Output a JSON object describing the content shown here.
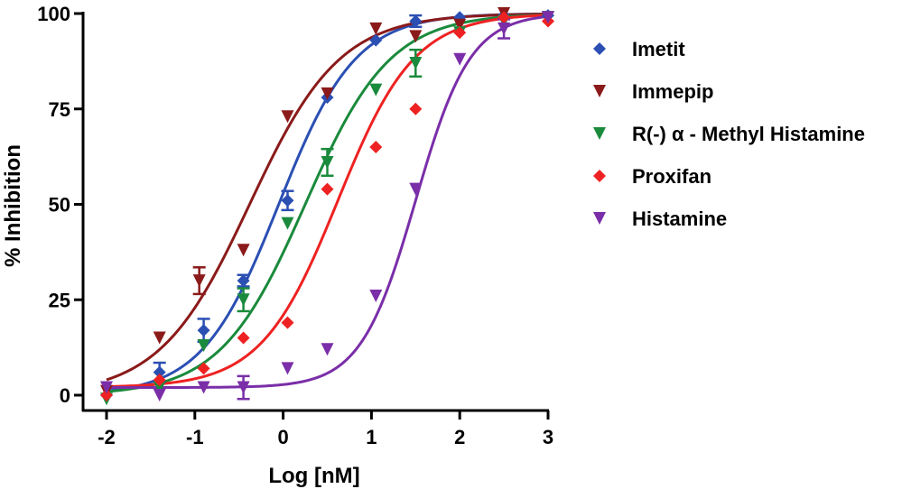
{
  "chart_data": {
    "type": "scatter",
    "title": "",
    "xlabel": "Log [nM]",
    "ylabel": "% Inhibition",
    "xlim": [
      -2,
      3
    ],
    "ylim": [
      0,
      100
    ],
    "xticks": [
      -2,
      -1,
      0,
      1,
      2,
      3
    ],
    "xtick_labels": [
      "-2",
      "-1",
      "0",
      "1",
      "2",
      "3"
    ],
    "yticks": [
      0,
      25,
      50,
      75,
      100
    ],
    "ytick_labels": [
      "0",
      "25",
      "50",
      "75",
      "100"
    ],
    "grid": false,
    "legend_position": "right",
    "series": [
      {
        "name": "Imetit",
        "color": "#2b4fb3",
        "marker": "diamond",
        "fit": {
          "bottom": 0,
          "top": 100,
          "logEC50": -0.05,
          "hill": 1.0
        },
        "x": [
          -2,
          -1.4,
          -0.9,
          -0.45,
          0.05,
          0.5,
          1.05,
          1.5,
          2,
          2.5,
          3
        ],
        "y": [
          0,
          6,
          17,
          30,
          51,
          78,
          93,
          98,
          99,
          99.5,
          99.5
        ],
        "err": [
          0,
          2.5,
          3,
          1.5,
          2.5,
          1,
          1,
          1.5,
          0.5,
          0.5,
          0.5
        ]
      },
      {
        "name": "Immepip",
        "color": "#8b1a1a",
        "marker": "triangle-down",
        "fit": {
          "bottom": 0,
          "top": 100,
          "logEC50": -0.38,
          "hill": 0.85
        },
        "x": [
          -2,
          -1.4,
          -0.95,
          -0.45,
          0.05,
          0.5,
          1.05,
          1.5,
          2,
          2.5,
          3
        ],
        "y": [
          1,
          15,
          30,
          38,
          73,
          79,
          96,
          94,
          97,
          100,
          99
        ],
        "err": [
          0,
          1,
          3.5,
          1,
          0.5,
          0.5,
          0.5,
          0.5,
          0.5,
          0.5,
          0.5
        ]
      },
      {
        "name": "R(-) α - Methyl Histamine",
        "color": "#1a8a3c",
        "marker": "triangle-down",
        "fit": {
          "bottom": 0,
          "top": 100,
          "logEC50": 0.25,
          "hill": 0.9
        },
        "x": [
          -2,
          -1.4,
          -0.9,
          -0.45,
          0.05,
          0.5,
          1.05,
          1.5,
          2,
          2.5,
          3
        ],
        "y": [
          -1,
          2,
          13,
          25,
          45,
          61,
          80,
          87,
          95,
          98,
          99
        ],
        "err": [
          0,
          0.5,
          1,
          3,
          0.5,
          3.5,
          0.5,
          3.5,
          0.5,
          0.5,
          0.5
        ]
      },
      {
        "name": "Proxifan",
        "color": "#ee2222",
        "marker": "diamond",
        "fit": {
          "bottom": 2,
          "top": 100,
          "logEC50": 0.62,
          "hill": 1.0
        },
        "x": [
          -2,
          -1.4,
          -0.9,
          -0.45,
          0.05,
          0.5,
          1.05,
          1.5,
          2,
          2.5,
          3
        ],
        "y": [
          0,
          4,
          7,
          15,
          19,
          54,
          65,
          75,
          95,
          99,
          98
        ],
        "err": [
          0,
          0.5,
          0.5,
          0.5,
          0.5,
          0.5,
          0.5,
          0.5,
          0.5,
          0.5,
          0.5
        ]
      },
      {
        "name": "Histamine",
        "color": "#7a2ea8",
        "marker": "triangle-down",
        "fit": {
          "bottom": 2,
          "top": 100,
          "logEC50": 1.5,
          "hill": 1.4
        },
        "x": [
          -2,
          -1.4,
          -0.9,
          -0.45,
          0.05,
          0.5,
          1.05,
          1.5,
          2,
          2.5,
          3
        ],
        "y": [
          2,
          0,
          2,
          2,
          7,
          12,
          26,
          54,
          88,
          96,
          99
        ],
        "err": [
          0,
          0.5,
          0.5,
          3,
          0.5,
          0.5,
          0.5,
          0.5,
          0.5,
          2.5,
          0.5
        ]
      }
    ]
  }
}
